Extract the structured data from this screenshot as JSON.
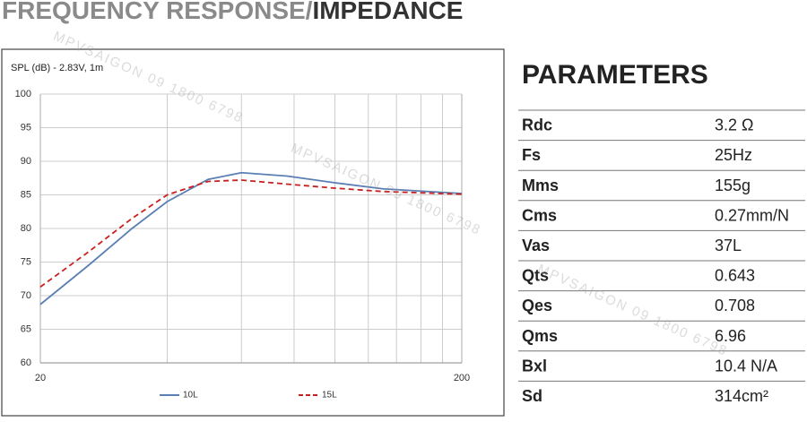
{
  "header": {
    "title_gray": "FREQUENCY RESPONSE/",
    "title_dark": "IMPEDANCE"
  },
  "watermark": "MPVSAIGON 09 1800 6798",
  "chart_data": {
    "type": "line",
    "y_label": "SPL (dB) - 2.83V, 1m",
    "x": [
      20,
      26,
      33,
      40,
      50,
      60,
      77,
      100,
      130,
      200
    ],
    "series": [
      {
        "name": "10L",
        "color": "#5b7fb4",
        "dash": false,
        "values": [
          68.7,
          74.5,
          80,
          84,
          87.3,
          88.3,
          87.8,
          86.8,
          85.9,
          85.2
        ]
      },
      {
        "name": "15L",
        "color": "#c8201e",
        "dash": true,
        "values": [
          71.3,
          76.5,
          81.5,
          85,
          87,
          87.2,
          86.6,
          86,
          85.5,
          85.1
        ]
      }
    ],
    "xscale": "log",
    "xlim": [
      20,
      200
    ],
    "xticks": [
      20,
      200
    ],
    "x_gridlines": [
      40,
      60,
      80,
      100,
      120,
      140,
      160,
      180
    ],
    "ylim": [
      60,
      100
    ],
    "yticks": [
      60,
      65,
      70,
      75,
      80,
      85,
      90,
      95,
      100
    ],
    "grid": true
  },
  "parameters": {
    "title": "PARAMETERS",
    "rows": [
      [
        "Rdc",
        "3.2 Ω"
      ],
      [
        "Fs",
        "25Hz"
      ],
      [
        "Mms",
        "155g"
      ],
      [
        "Cms",
        "0.27mm/N"
      ],
      [
        "Vas",
        "37L"
      ],
      [
        "Qts",
        "0.643"
      ],
      [
        "Qes",
        "0.708"
      ],
      [
        "Qms",
        "6.96"
      ],
      [
        "Bxl",
        "10.4 N/A"
      ],
      [
        "Sd",
        "314cm²"
      ]
    ]
  }
}
